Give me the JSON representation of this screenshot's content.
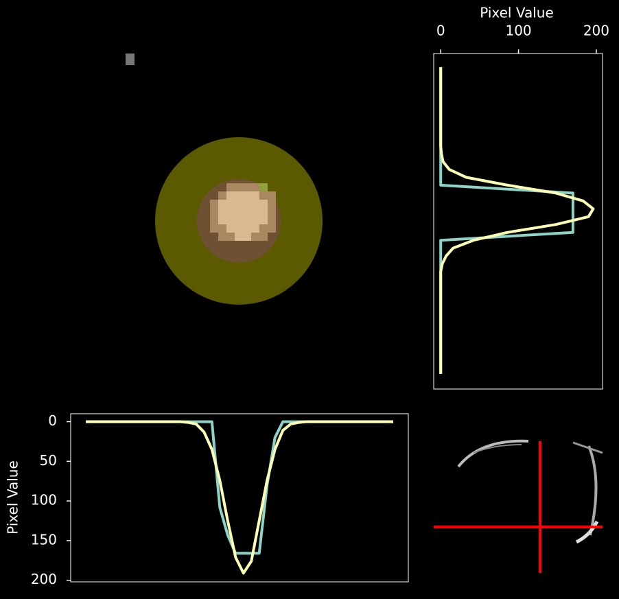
{
  "chart_data": [
    {
      "type": "line",
      "y_label": "Pixel Value",
      "ylim": [
        -10,
        202
      ],
      "y_inverted": true,
      "yticks": [
        0,
        50,
        100,
        150,
        200
      ],
      "series": [
        {
          "color": "#8dd3c7",
          "values": [
            0,
            0,
            0,
            0,
            0,
            0,
            0,
            0,
            0,
            0,
            0,
            0,
            0,
            0,
            0,
            0,
            0,
            108,
            143,
            166,
            166,
            166,
            166,
            80,
            20,
            0,
            0,
            0,
            0,
            0,
            0,
            0,
            0,
            0,
            0,
            0,
            0,
            0,
            0,
            0
          ]
        },
        {
          "color": "#ffffb3",
          "values": [
            0,
            0,
            0,
            0,
            0,
            0,
            0,
            0,
            0,
            0,
            0,
            0,
            0,
            1,
            3,
            13,
            35,
            74,
            125,
            171,
            191,
            176,
            125,
            74,
            35,
            11,
            3,
            1,
            0,
            0,
            0,
            0,
            0,
            0,
            0,
            0,
            0,
            0,
            0,
            0
          ]
        }
      ]
    },
    {
      "type": "line",
      "orientation": "vertical",
      "x_label": "Pixel Value",
      "xlim": [
        -9,
        208
      ],
      "xticks": [
        0,
        100,
        200
      ],
      "series": [
        {
          "color": "#8dd3c7",
          "values": [
            0,
            0,
            0,
            0,
            0,
            0,
            0,
            0,
            0,
            0,
            0,
            0,
            0,
            0,
            0,
            0,
            170,
            170,
            170,
            170,
            170,
            170,
            0,
            0,
            0,
            0,
            0,
            0,
            0,
            0,
            0,
            0,
            0,
            0,
            0,
            0,
            0,
            0,
            0,
            0
          ]
        },
        {
          "color": "#ffffb3",
          "values": [
            0,
            0,
            0,
            0,
            0,
            0,
            0,
            0,
            0,
            0,
            0,
            1,
            3,
            11,
            33,
            86,
            148,
            183,
            196,
            190,
            148,
            86,
            42,
            16,
            7,
            2,
            0,
            0,
            0,
            0,
            0,
            0,
            0,
            0,
            0,
            0,
            0,
            0,
            0,
            0
          ]
        }
      ]
    }
  ]
}
